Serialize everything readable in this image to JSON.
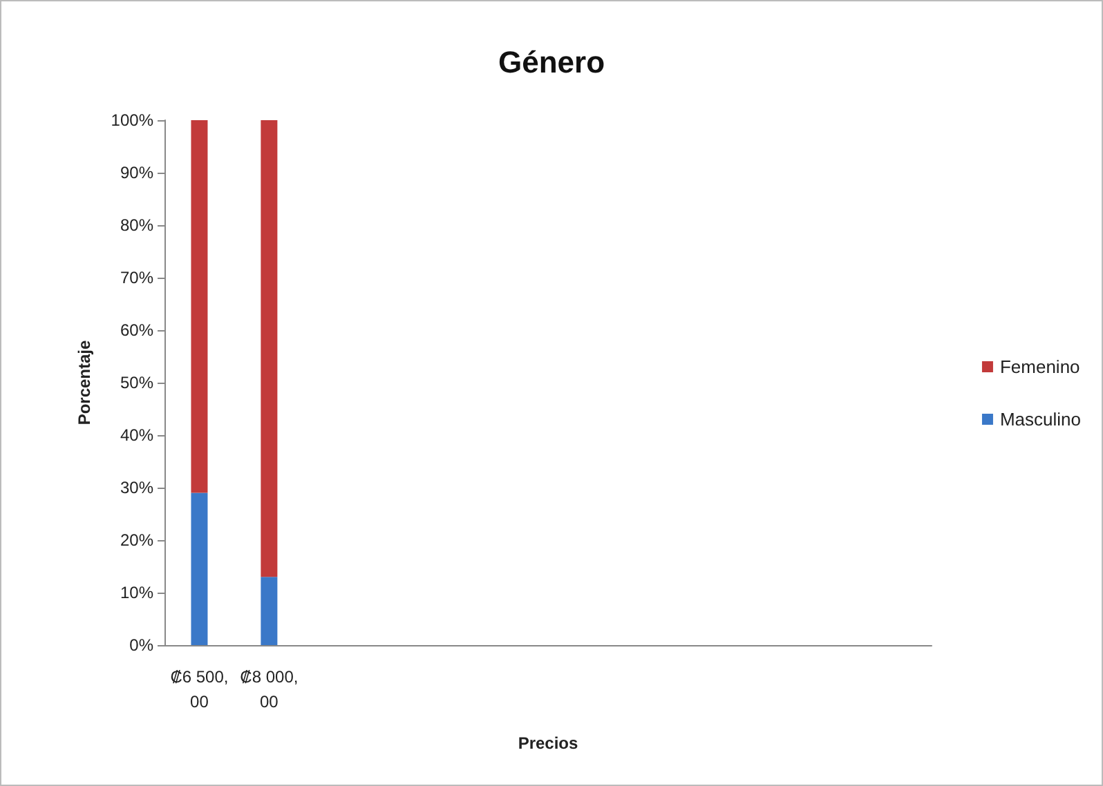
{
  "chart_data": {
    "type": "bar",
    "title": "Género",
    "xlabel": "Precios",
    "ylabel": "Porcentaje",
    "stacked": true,
    "categories": [
      "₡6 500,00",
      "₡8 000,00",
      null,
      null,
      null,
      null,
      null,
      null,
      null,
      null,
      null
    ],
    "series": [
      {
        "name": "Masculino",
        "color": "#3a78c8",
        "values": [
          29,
          13,
          null,
          null,
          null,
          null,
          null,
          null,
          null,
          null,
          null
        ]
      },
      {
        "name": "Femenino",
        "color": "#c23a3a",
        "values": [
          71,
          87,
          null,
          null,
          null,
          null,
          null,
          null,
          null,
          null,
          null
        ]
      }
    ],
    "ylim": [
      0,
      100
    ],
    "yticks": [
      {
        "value": 0,
        "label": "0%"
      },
      {
        "value": 10,
        "label": "10%"
      },
      {
        "value": 20,
        "label": "20%"
      },
      {
        "value": 30,
        "label": "30%"
      },
      {
        "value": 40,
        "label": "40%"
      },
      {
        "value": 50,
        "label": "50%"
      },
      {
        "value": 60,
        "label": "60%"
      },
      {
        "value": 70,
        "label": "70%"
      },
      {
        "value": 80,
        "label": "80%"
      },
      {
        "value": 90,
        "label": "90%"
      },
      {
        "value": 100,
        "label": "100%"
      }
    ],
    "grid": false,
    "legend": "right"
  }
}
